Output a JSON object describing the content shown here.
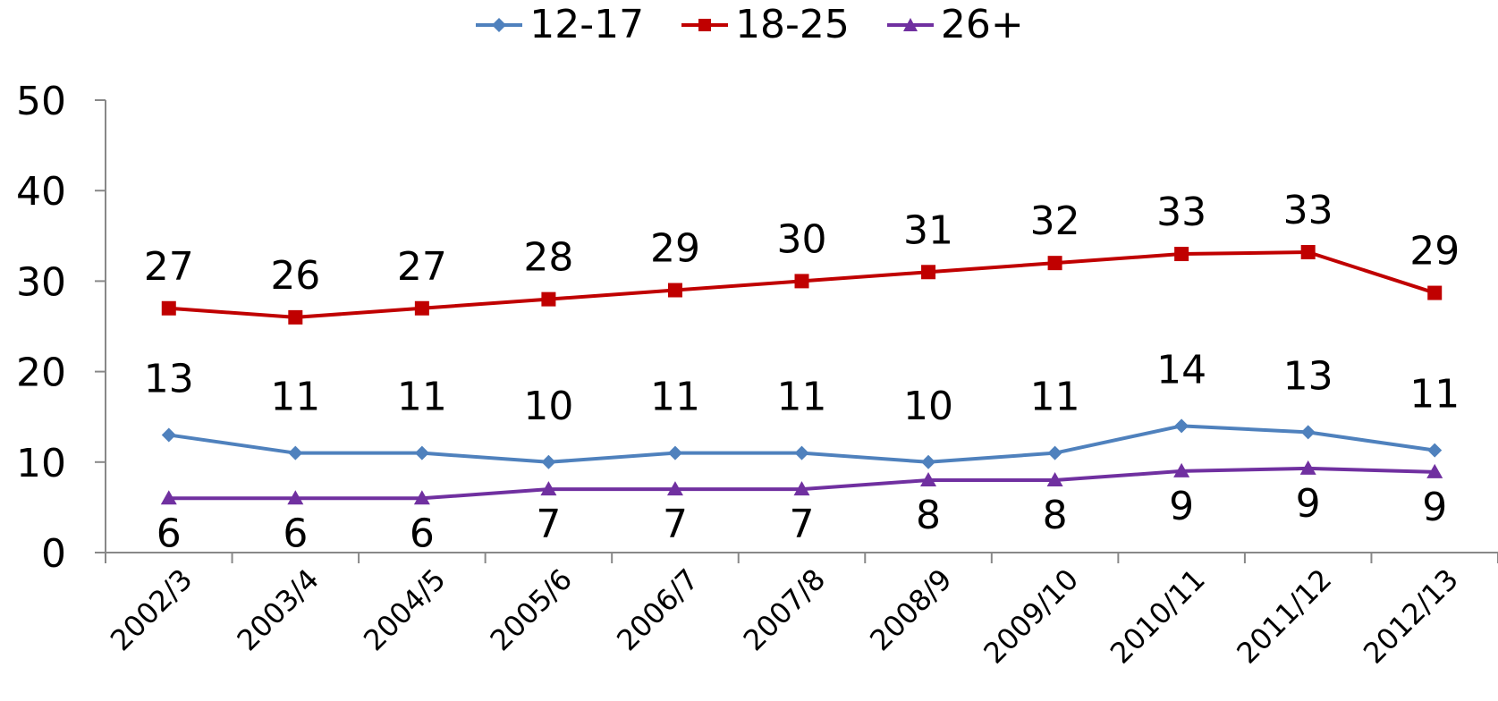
{
  "chart_data": {
    "type": "line",
    "categories": [
      "2002/3",
      "2003/4",
      "2004/5",
      "2005/6",
      "2006/7",
      "2007/8",
      "2008/9",
      "2009/10",
      "2010/11",
      "2011/12",
      "2012/13"
    ],
    "series": [
      {
        "name": "12-17",
        "color": "#4f81bd",
        "marker": "diamond",
        "values": [
          13,
          11,
          11,
          10,
          11,
          11,
          10,
          11,
          14,
          13.3,
          11.3
        ],
        "labels": [
          "13",
          "11",
          "11",
          "10",
          "11",
          "11",
          "10",
          "11",
          "14",
          "13",
          "11"
        ]
      },
      {
        "name": "18-25",
        "color": "#c00000",
        "marker": "square",
        "values": [
          27,
          26,
          27,
          28,
          29,
          30,
          31,
          32,
          33,
          33.2,
          28.7
        ],
        "labels": [
          "27",
          "26",
          "27",
          "28",
          "29",
          "30",
          "31",
          "32",
          "33",
          "33",
          "29"
        ]
      },
      {
        "name": "26+",
        "color": "#7030a0",
        "marker": "triangle",
        "values": [
          6,
          6,
          6,
          7,
          7,
          7,
          8,
          8,
          9,
          9.3,
          8.9
        ],
        "labels": [
          "6",
          "6",
          "6",
          "7",
          "7",
          "7",
          "8",
          "8",
          "9",
          "9",
          "9"
        ]
      }
    ],
    "ylim": [
      0,
      50
    ],
    "yticks": [
      0,
      10,
      20,
      30,
      40,
      50
    ],
    "grid": false,
    "legend": "top-center"
  }
}
